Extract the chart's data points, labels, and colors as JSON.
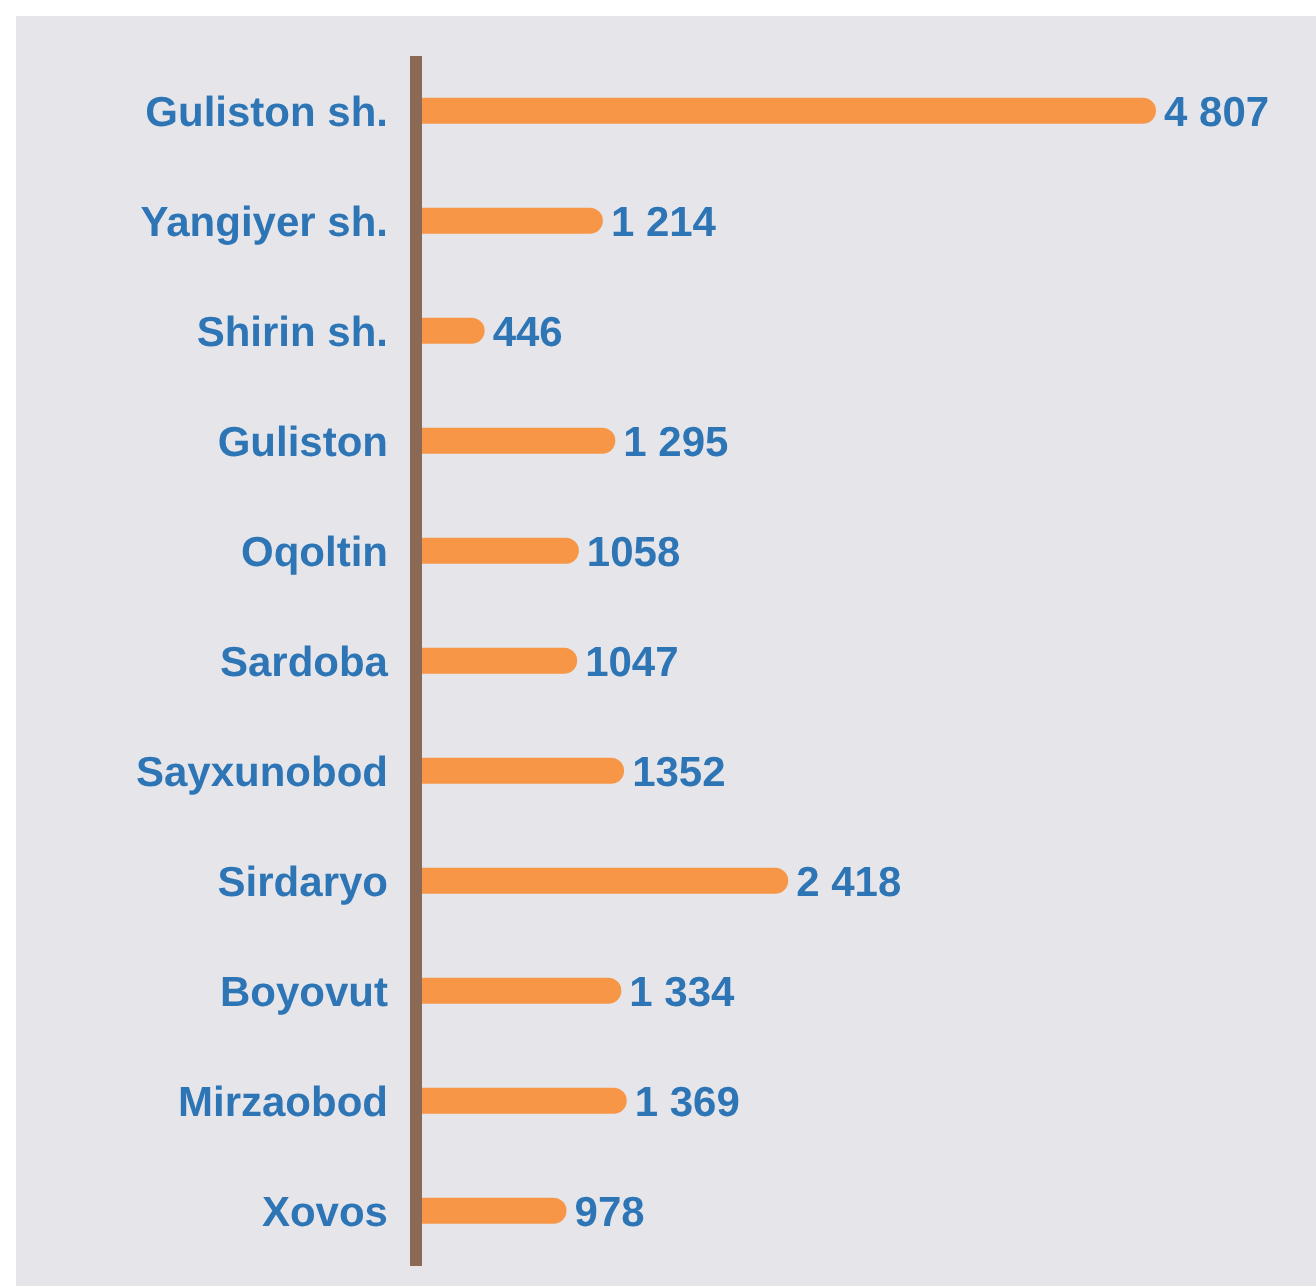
{
  "chart_data": {
    "type": "bar",
    "orientation": "horizontal",
    "categories": [
      "Guliston sh.",
      "Yangiyer sh.",
      "Shirin sh.",
      "Guliston",
      "Oqoltin",
      "Sardoba",
      "Sayxunobod",
      "Sirdaryo",
      "Boyovut",
      "Mirzaobod",
      "Xovos"
    ],
    "values": [
      4807,
      1214,
      446,
      1295,
      1058,
      1047,
      1352,
      2418,
      1334,
      1369,
      978
    ],
    "value_labels": [
      "4 807",
      "1 214",
      "446",
      "1 295",
      "1058",
      "1047",
      "1352",
      "2 418",
      "1 334",
      "1 369",
      "978"
    ],
    "color": "#f79646"
  }
}
